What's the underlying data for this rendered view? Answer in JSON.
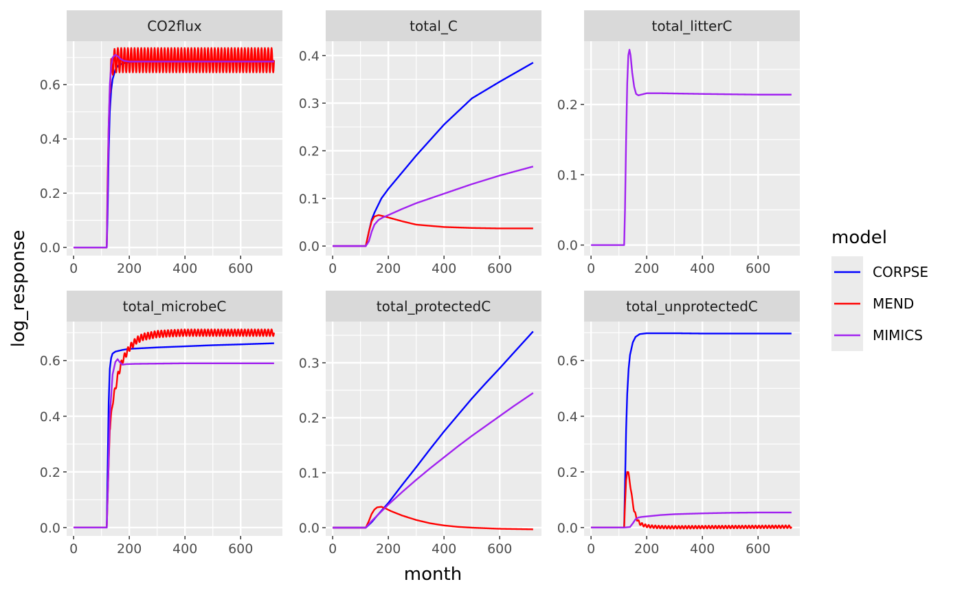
{
  "chart_data": {
    "type": "line",
    "xlabel": "month",
    "ylabel": "log_response",
    "legend": {
      "title": "model",
      "position": "right",
      "entries": [
        "CORPSE",
        "MEND",
        "MIMICS"
      ]
    },
    "colors": {
      "CORPSE": "#0000ff",
      "MEND": "#ff0000",
      "MIMICS": "#a020f0"
    },
    "grid": true,
    "x_ticks": [
      0,
      200,
      400,
      600
    ],
    "xlim": [
      -25,
      750
    ],
    "panels": [
      {
        "title": "CO2flux",
        "ylim": [
          -0.03,
          0.76
        ],
        "y_ticks": [
          0.0,
          0.2,
          0.4,
          0.6
        ],
        "y_tick_labels": [
          "0.0",
          "0.2",
          "0.4",
          "0.6"
        ],
        "series": [
          {
            "name": "CORPSE",
            "x": [
              0,
              119,
              122,
              126,
              130,
              135,
              140,
              150,
              160,
              175,
              200,
              250,
              300,
              400,
              500,
              600,
              720
            ],
            "y": [
              0,
              0,
              0.12,
              0.35,
              0.5,
              0.58,
              0.62,
              0.655,
              0.67,
              0.678,
              0.683,
              0.686,
              0.687,
              0.687,
              0.688,
              0.688,
              0.688
            ]
          },
          {
            "name": "MEND",
            "x": [
              0,
              119,
              122,
              126,
              130,
              135,
              140,
              150,
              160,
              170,
              720
            ],
            "y": [
              0,
              0,
              0.25,
              0.45,
              0.58,
              0.65,
              0.68,
              0.69,
              0.69,
              0.69,
              0.69
            ],
            "oscillation": 0.045,
            "period": 12
          },
          {
            "name": "MIMICS",
            "x": [
              0,
              119,
              122,
              126,
              130,
              135,
              140,
              150,
              158,
              168,
              180,
              200,
              250,
              720
            ],
            "y": [
              0,
              0,
              0.2,
              0.45,
              0.6,
              0.67,
              0.7,
              0.71,
              0.705,
              0.695,
              0.688,
              0.685,
              0.685,
              0.685
            ]
          }
        ]
      },
      {
        "title": "total_C",
        "ylim": [
          -0.02,
          0.43
        ],
        "y_ticks": [
          0.0,
          0.1,
          0.2,
          0.3,
          0.4
        ],
        "y_tick_labels": [
          "0.0",
          "0.1",
          "0.2",
          "0.3",
          "0.4"
        ],
        "series": [
          {
            "name": "CORPSE",
            "x": [
              0,
              119,
              130,
              140,
              150,
              175,
              200,
              250,
              300,
              400,
              500,
              600,
              720
            ],
            "y": [
              0,
              0,
              0.03,
              0.055,
              0.07,
              0.1,
              0.12,
              0.155,
              0.19,
              0.255,
              0.31,
              0.345,
              0.385
            ]
          },
          {
            "name": "MEND",
            "x": [
              0,
              119,
              130,
              140,
              150,
              165,
              180,
              200,
              250,
              300,
              400,
              500,
              600,
              720
            ],
            "y": [
              0,
              0,
              0.03,
              0.052,
              0.062,
              0.065,
              0.063,
              0.06,
              0.052,
              0.045,
              0.04,
              0.038,
              0.037,
              0.037
            ]
          },
          {
            "name": "MIMICS",
            "x": [
              0,
              119,
              130,
              140,
              150,
              165,
              180,
              200,
              250,
              300,
              400,
              500,
              600,
              720
            ],
            "y": [
              0,
              0,
              0.01,
              0.03,
              0.045,
              0.055,
              0.06,
              0.065,
              0.078,
              0.09,
              0.11,
              0.13,
              0.148,
              0.167
            ]
          }
        ]
      },
      {
        "title": "total_litterC",
        "ylim": [
          -0.015,
          0.29
        ],
        "y_ticks": [
          0.0,
          0.1,
          0.2
        ],
        "y_tick_labels": [
          "0.0",
          "0.1",
          "0.2"
        ],
        "series": [
          {
            "name": "MIMICS",
            "x": [
              0,
              119,
              122,
              126,
              130,
              134,
              138,
              142,
              148,
              155,
              162,
              170,
              180,
              200,
              250,
              400,
              600,
              720
            ],
            "y": [
              0,
              0,
              0.05,
              0.15,
              0.23,
              0.27,
              0.278,
              0.27,
              0.245,
              0.225,
              0.215,
              0.213,
              0.214,
              0.216,
              0.216,
              0.215,
              0.214,
              0.214
            ]
          }
        ]
      },
      {
        "title": "total_microbeC",
        "ylim": [
          -0.03,
          0.74
        ],
        "y_ticks": [
          0.0,
          0.2,
          0.4,
          0.6
        ],
        "y_tick_labels": [
          "0.0",
          "0.2",
          "0.4",
          "0.6"
        ],
        "series": [
          {
            "name": "CORPSE",
            "x": [
              0,
              119,
              122,
              126,
              130,
              135,
              140,
              150,
              175,
              200,
              300,
              400,
              500,
              600,
              720
            ],
            "y": [
              0,
              0,
              0.2,
              0.45,
              0.57,
              0.61,
              0.625,
              0.632,
              0.638,
              0.642,
              0.647,
              0.651,
              0.655,
              0.658,
              0.662
            ]
          },
          {
            "name": "MEND",
            "x": [
              0,
              119,
              125,
              130,
              140,
              150,
              160,
              175,
              200,
              225,
              250,
              300,
              350,
              400,
              500,
              720
            ],
            "y": [
              0,
              0,
              0.2,
              0.35,
              0.45,
              0.5,
              0.55,
              0.6,
              0.645,
              0.672,
              0.685,
              0.695,
              0.698,
              0.7,
              0.7,
              0.7
            ],
            "oscillation": 0.012,
            "period": 12
          },
          {
            "name": "MIMICS",
            "x": [
              0,
              119,
              125,
              130,
              140,
              150,
              158,
              165,
              175,
              190,
              220,
              400,
              720
            ],
            "y": [
              0,
              0,
              0.2,
              0.4,
              0.55,
              0.595,
              0.605,
              0.595,
              0.585,
              0.587,
              0.588,
              0.59,
              0.59
            ]
          }
        ]
      },
      {
        "title": "total_protectedC",
        "ylim": [
          -0.015,
          0.375
        ],
        "y_ticks": [
          0.0,
          0.1,
          0.2,
          0.3
        ],
        "y_tick_labels": [
          "0.0",
          "0.1",
          "0.2",
          "0.3"
        ],
        "series": [
          {
            "name": "CORPSE",
            "x": [
              0,
              119,
              140,
              160,
              200,
              250,
              300,
              350,
              400,
              450,
              500,
              550,
              600,
              650,
              720
            ],
            "y": [
              0,
              0,
              0.01,
              0.022,
              0.045,
              0.078,
              0.11,
              0.143,
              0.175,
              0.205,
              0.235,
              0.263,
              0.29,
              0.318,
              0.357
            ]
          },
          {
            "name": "MEND",
            "x": [
              0,
              119,
              130,
              140,
              150,
              160,
              175,
              190,
              210,
              250,
              300,
              350,
              400,
              450,
              500,
              600,
              720
            ],
            "y": [
              0,
              0,
              0.012,
              0.025,
              0.033,
              0.037,
              0.038,
              0.035,
              0.03,
              0.022,
              0.014,
              0.008,
              0.004,
              0.0015,
              0.0,
              -0.002,
              -0.003
            ]
          },
          {
            "name": "MIMICS",
            "x": [
              0,
              119,
              140,
              160,
              200,
              250,
              300,
              350,
              400,
              450,
              500,
              550,
              600,
              650,
              720
            ],
            "y": [
              0,
              0,
              0.012,
              0.022,
              0.042,
              0.065,
              0.087,
              0.108,
              0.128,
              0.148,
              0.167,
              0.185,
              0.203,
              0.221,
              0.245
            ]
          }
        ]
      },
      {
        "title": "total_unprotectedC",
        "ylim": [
          -0.03,
          0.74
        ],
        "y_ticks": [
          0.0,
          0.2,
          0.4,
          0.6
        ],
        "y_tick_labels": [
          "0.0",
          "0.2",
          "0.4",
          "0.6"
        ],
        "series": [
          {
            "name": "CORPSE",
            "x": [
              0,
              119,
              122,
              126,
              130,
              135,
              140,
              150,
              160,
              175,
              200,
              250,
              300,
              400,
              500,
              600,
              720
            ],
            "y": [
              0,
              0,
              0.15,
              0.35,
              0.48,
              0.57,
              0.62,
              0.665,
              0.685,
              0.695,
              0.698,
              0.698,
              0.698,
              0.697,
              0.697,
              0.697,
              0.697
            ]
          },
          {
            "name": "MEND",
            "x": [
              0,
              119,
              122,
              126,
              130,
              134,
              140,
              148,
              155,
              165,
              175,
              190,
              210,
              240,
              280,
              720
            ],
            "y": [
              0,
              0,
              0.08,
              0.17,
              0.2,
              0.195,
              0.16,
              0.1,
              0.06,
              0.03,
              0.015,
              0.008,
              0.004,
              0.002,
              0.001,
              0.003
            ],
            "oscillation": 0.005,
            "period": 12
          },
          {
            "name": "MIMICS",
            "x": [
              0,
              119,
              140,
              150,
              160,
              170,
              180,
              200,
              250,
              300,
              400,
              500,
              600,
              720
            ],
            "y": [
              0,
              0,
              0.002,
              0.015,
              0.03,
              0.036,
              0.038,
              0.04,
              0.045,
              0.048,
              0.051,
              0.053,
              0.054,
              0.054
            ]
          }
        ]
      }
    ]
  }
}
